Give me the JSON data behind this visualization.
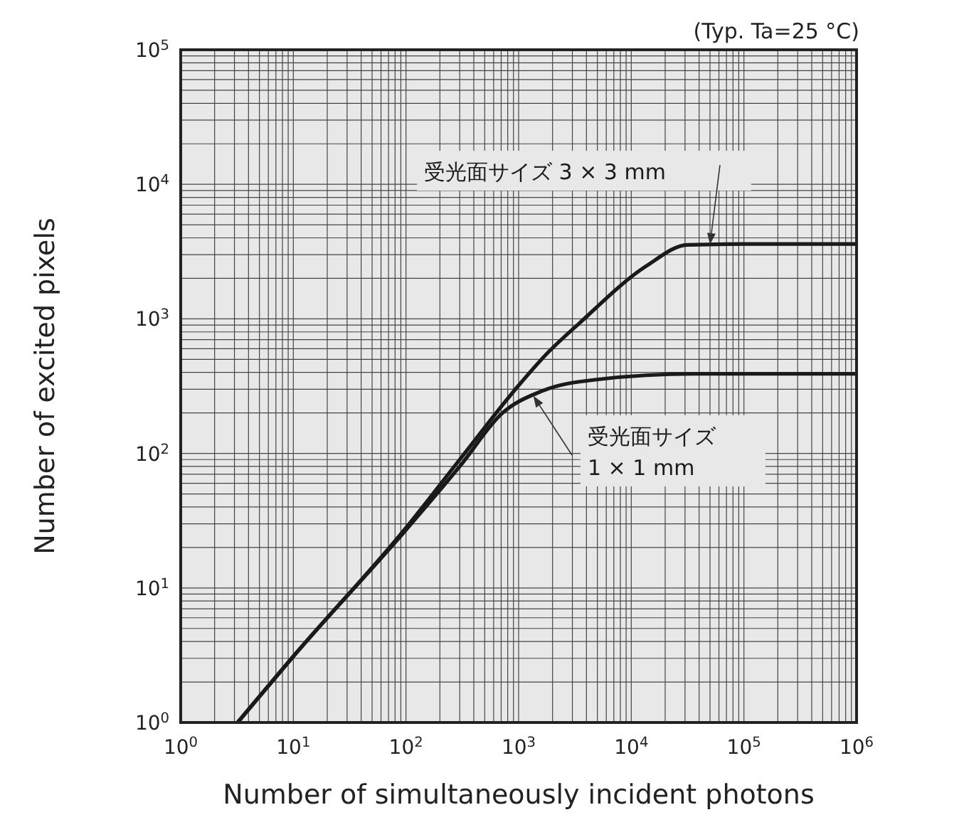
{
  "chart_data": {
    "type": "line",
    "xlabel": "Number of simultaneously incident photons",
    "ylabel": "Number of excited pixels",
    "annotations": [
      "(Typ. Ta=25 °C)"
    ],
    "log": "xy",
    "grid": true,
    "xlim": [
      1,
      1000000
    ],
    "ylim": [
      1,
      100000
    ],
    "xticks": [
      {
        "value": 1,
        "label": "10$^{0}$"
      },
      {
        "value": 10,
        "label": "10$^{1}$"
      },
      {
        "value": 100,
        "label": "10$^{2}$"
      },
      {
        "value": 1000,
        "label": "10$^{3}$"
      },
      {
        "value": 10000,
        "label": "10$^{4}$"
      },
      {
        "value": 100000,
        "label": "10$^{5}$"
      },
      {
        "value": 1000000,
        "label": "10$^{6}$"
      }
    ],
    "yticks": [
      {
        "value": 1,
        "label": "10$^{0}$"
      },
      {
        "value": 10,
        "label": "10$^{1}$"
      },
      {
        "value": 100,
        "label": "10$^{2}$"
      },
      {
        "value": 1000,
        "label": "10$^{3}$"
      },
      {
        "value": 10000,
        "label": "10$^{4}$"
      },
      {
        "value": 100000,
        "label": "10$^{5}$"
      }
    ],
    "series": [
      {
        "name": "受光面サイズ 3 × 3 mm",
        "color": "#1a1a1a",
        "x": [
          3.2,
          10,
          100,
          300,
          1000,
          1740,
          3470,
          13500,
          31600,
          100000,
          1000000
        ],
        "values": [
          1,
          3.1,
          28,
          90,
          320,
          540,
          930,
          2460,
          3550,
          3600,
          3600
        ]
      },
      {
        "name": "受光面サイズ\n1 × 1 mm",
        "color": "#1a1a1a",
        "x": [
          3.2,
          10,
          100,
          300,
          720,
          1600,
          5100,
          36000,
          100000,
          1000000
        ],
        "values": [
          1,
          3.1,
          27,
          80,
          200,
          290,
          355,
          390,
          390,
          390
        ]
      }
    ]
  }
}
